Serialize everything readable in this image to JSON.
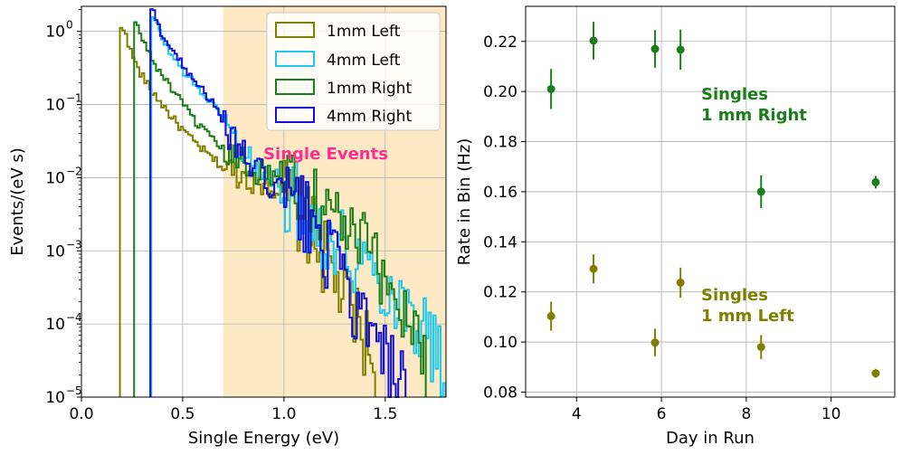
{
  "chart_data": [
    {
      "type": "step-histogram",
      "xlabel": "Single Energy (eV)",
      "ylabel": "Events/(eV s)",
      "yscale": "log",
      "xlim": [
        0.0,
        1.8
      ],
      "ylim": [
        1e-05,
        2.2
      ],
      "grid": true,
      "legend_position": "upper-right",
      "x_ticks": [
        0.0,
        0.5,
        1.0,
        1.5
      ],
      "x_tick_labels": [
        "0.0",
        "0.5",
        "1.0",
        "1.5"
      ],
      "y_ticks": [
        1e-05,
        0.0001,
        0.001,
        0.01,
        0.1,
        1
      ],
      "y_tick_labels": [
        {
          "base": "10",
          "exp": "−5"
        },
        {
          "base": "10",
          "exp": "−4"
        },
        {
          "base": "10",
          "exp": "−3"
        },
        {
          "base": "10",
          "exp": "−2"
        },
        {
          "base": "10",
          "exp": "−1"
        },
        {
          "base": "10",
          "exp": "0"
        }
      ],
      "shaded_region": {
        "x_range": [
          0.7,
          1.8
        ],
        "label": "Single Events",
        "label_color": "#ff2d8e",
        "fill": "#fde9c4"
      },
      "series": [
        {
          "name": "1mm Left",
          "color": "#808000",
          "threshold": 0.19,
          "points": [
            [
              0.2,
              1.05
            ],
            [
              0.22,
              1.0
            ],
            [
              0.24,
              0.55
            ],
            [
              0.26,
              0.42
            ],
            [
              0.28,
              0.3
            ],
            [
              0.3,
              0.25
            ],
            [
              0.32,
              0.2
            ],
            [
              0.35,
              0.15
            ],
            [
              0.4,
              0.1
            ],
            [
              0.45,
              0.065
            ],
            [
              0.5,
              0.045
            ],
            [
              0.55,
              0.032
            ],
            [
              0.6,
              0.024
            ],
            [
              0.65,
              0.018
            ],
            [
              0.7,
              0.014
            ],
            [
              0.75,
              0.012
            ],
            [
              0.8,
              0.011
            ],
            [
              0.85,
              0.01
            ],
            [
              0.9,
              0.009
            ],
            [
              0.95,
              0.008
            ],
            [
              1.0,
              0.006
            ],
            [
              1.05,
              0.004
            ],
            [
              1.1,
              0.0025
            ],
            [
              1.15,
              0.0015
            ],
            [
              1.2,
              0.0008
            ],
            [
              1.25,
              0.0004
            ],
            [
              1.3,
              0.00025
            ],
            [
              1.35,
              0.00012
            ],
            [
              1.4,
              6e-05
            ],
            [
              1.45,
              2.5e-05
            ]
          ]
        },
        {
          "name": "4mm Left",
          "color": "#1ec8ef",
          "threshold": 0.345,
          "points": [
            [
              0.35,
              1.5
            ],
            [
              0.37,
              1.3
            ],
            [
              0.4,
              0.8
            ],
            [
              0.45,
              0.45
            ],
            [
              0.5,
              0.3
            ],
            [
              0.55,
              0.2
            ],
            [
              0.6,
              0.14
            ],
            [
              0.65,
              0.1
            ],
            [
              0.7,
              0.065
            ],
            [
              0.75,
              0.035
            ],
            [
              0.8,
              0.022
            ],
            [
              0.85,
              0.015
            ],
            [
              0.9,
              0.011
            ],
            [
              0.95,
              0.0085
            ],
            [
              1.0,
              0.0065
            ],
            [
              1.05,
              0.005
            ],
            [
              1.1,
              0.0036
            ],
            [
              1.15,
              0.0026
            ],
            [
              1.2,
              0.0019
            ],
            [
              1.25,
              0.0014
            ],
            [
              1.3,
              0.0011
            ],
            [
              1.35,
              0.0009
            ],
            [
              1.4,
              0.0007
            ],
            [
              1.45,
              0.0005
            ],
            [
              1.5,
              0.00035
            ],
            [
              1.55,
              0.00025
            ],
            [
              1.6,
              0.00018
            ],
            [
              1.65,
              0.00013
            ],
            [
              1.7,
              8e-05
            ],
            [
              1.75,
              4e-05
            ],
            [
              1.8,
              2e-05
            ]
          ]
        },
        {
          "name": "1mm Right",
          "color": "#1a7f1a",
          "threshold": 0.26,
          "points": [
            [
              0.26,
              1.4
            ],
            [
              0.28,
              1.1
            ],
            [
              0.3,
              0.8
            ],
            [
              0.33,
              0.55
            ],
            [
              0.35,
              0.4
            ],
            [
              0.4,
              0.25
            ],
            [
              0.45,
              0.16
            ],
            [
              0.5,
              0.1
            ],
            [
              0.55,
              0.065
            ],
            [
              0.6,
              0.045
            ],
            [
              0.65,
              0.032
            ],
            [
              0.7,
              0.024
            ],
            [
              0.75,
              0.019
            ],
            [
              0.8,
              0.016
            ],
            [
              0.85,
              0.014
            ],
            [
              0.9,
              0.012
            ],
            [
              0.95,
              0.011
            ],
            [
              1.0,
              0.01
            ],
            [
              1.05,
              0.0085
            ],
            [
              1.1,
              0.007
            ],
            [
              1.15,
              0.0055
            ],
            [
              1.2,
              0.004
            ],
            [
              1.25,
              0.003
            ],
            [
              1.3,
              0.0022
            ],
            [
              1.35,
              0.0015
            ],
            [
              1.4,
              0.001
            ],
            [
              1.45,
              0.0007
            ],
            [
              1.5,
              0.0004
            ],
            [
              1.55,
              0.00025
            ],
            [
              1.6,
              0.00015
            ],
            [
              1.65,
              8e-05
            ],
            [
              1.7,
              5e-05
            ]
          ]
        },
        {
          "name": "4mm Right",
          "color": "#1010d8",
          "threshold": 0.34,
          "points": [
            [
              0.35,
              2.0
            ],
            [
              0.37,
              1.4
            ],
            [
              0.4,
              0.9
            ],
            [
              0.45,
              0.55
            ],
            [
              0.5,
              0.35
            ],
            [
              0.55,
              0.24
            ],
            [
              0.6,
              0.16
            ],
            [
              0.65,
              0.1
            ],
            [
              0.7,
              0.055
            ],
            [
              0.75,
              0.032
            ],
            [
              0.8,
              0.02
            ],
            [
              0.85,
              0.014
            ],
            [
              0.9,
              0.01
            ],
            [
              0.95,
              0.0075
            ],
            [
              1.0,
              0.006
            ],
            [
              1.05,
              0.0045
            ],
            [
              1.1,
              0.0032
            ],
            [
              1.15,
              0.002
            ],
            [
              1.2,
              0.0012
            ],
            [
              1.25,
              0.0006
            ],
            [
              1.3,
              0.00035
            ],
            [
              1.35,
              0.00018
            ],
            [
              1.4,
              9e-05
            ],
            [
              1.45,
              5e-05
            ],
            [
              1.5,
              3e-05
            ],
            [
              1.55,
              1.8e-05
            ],
            [
              1.6,
              1e-05
            ]
          ]
        }
      ]
    },
    {
      "type": "scatter-errorbar",
      "xlabel": "Day in Run",
      "ylabel": "Rate in Bin (Hz)",
      "xlim": [
        2.8,
        11.5
      ],
      "ylim": [
        0.078,
        0.234
      ],
      "grid": true,
      "x_ticks": [
        4,
        6,
        8,
        10
      ],
      "x_tick_labels": [
        "4",
        "6",
        "8",
        "10"
      ],
      "y_ticks": [
        0.08,
        0.1,
        0.12,
        0.14,
        0.16,
        0.18,
        0.2,
        0.22
      ],
      "y_tick_labels": [
        "0.08",
        "0.10",
        "0.12",
        "0.14",
        "0.16",
        "0.18",
        "0.20",
        "0.22"
      ],
      "annotations": [
        {
          "lines": [
            "Singles",
            "1 mm Right"
          ],
          "color": "#1a7f1a"
        },
        {
          "lines": [
            "Singles",
            "1 mm Left"
          ],
          "color": "#808000"
        }
      ],
      "series": [
        {
          "color": "#1a7f1a",
          "x": [
            3.4,
            4.4,
            5.85,
            6.45,
            8.35,
            11.05
          ],
          "y": [
            0.201,
            0.2203,
            0.217,
            0.2167,
            0.16,
            0.1638
          ],
          "err": [
            0.008,
            0.0075,
            0.0075,
            0.008,
            0.0065,
            0.0025
          ]
        },
        {
          "color": "#808000",
          "x": [
            3.4,
            4.4,
            5.85,
            6.45,
            8.35,
            11.05
          ],
          "y": [
            0.1103,
            0.1292,
            0.0998,
            0.1237,
            0.098,
            0.0875
          ],
          "err": [
            0.0058,
            0.0058,
            0.0055,
            0.006,
            0.0048,
            0.0018
          ]
        }
      ]
    }
  ],
  "legend": {
    "items": [
      {
        "label": "1mm Left",
        "color": "#808000"
      },
      {
        "label": "4mm Left",
        "color": "#1ec8ef"
      },
      {
        "label": "1mm Right",
        "color": "#1a7f1a"
      },
      {
        "label": "4mm Right",
        "color": "#1010d8"
      }
    ]
  }
}
